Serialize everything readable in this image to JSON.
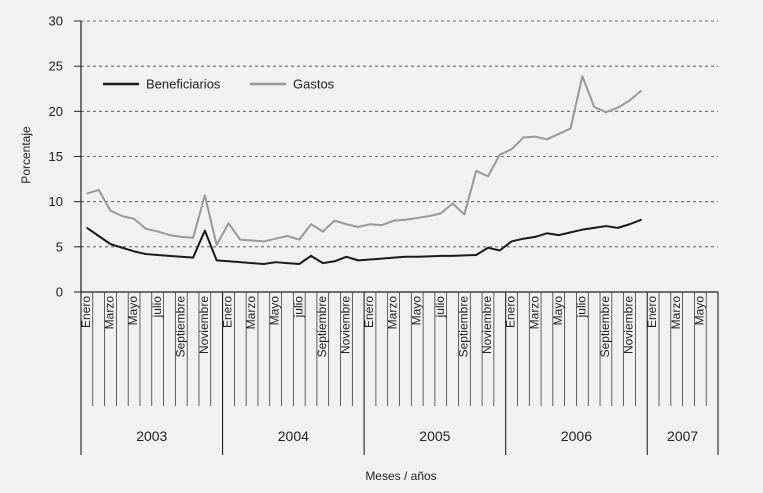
{
  "chart_data": {
    "type": "line",
    "title": "",
    "xlabel": "Meses / años",
    "ylabel": "Porcentaje",
    "ylim": [
      0,
      30
    ],
    "yticks": [
      0,
      5,
      10,
      15,
      20,
      25,
      30
    ],
    "grid": "horizontal-dashed",
    "legend_position": "top-left",
    "years": [
      {
        "label": "2003",
        "start": 0,
        "end": 12
      },
      {
        "label": "2004",
        "start": 12,
        "end": 24
      },
      {
        "label": "2005",
        "start": 24,
        "end": 36
      },
      {
        "label": "2006",
        "start": 36,
        "end": 48
      },
      {
        "label": "2007",
        "start": 48,
        "end": 54
      }
    ],
    "month_tick_labels": [
      {
        "index": 0,
        "label": "Enero"
      },
      {
        "index": 2,
        "label": "Marzo"
      },
      {
        "index": 4,
        "label": "Mayo"
      },
      {
        "index": 6,
        "label": "julio"
      },
      {
        "index": 8,
        "label": "Septiembre"
      },
      {
        "index": 10,
        "label": "Noviembre"
      },
      {
        "index": 12,
        "label": "Enero"
      },
      {
        "index": 14,
        "label": "Marzo"
      },
      {
        "index": 16,
        "label": "Mayo"
      },
      {
        "index": 18,
        "label": "julio"
      },
      {
        "index": 20,
        "label": "Septiembre"
      },
      {
        "index": 22,
        "label": "Noviembre"
      },
      {
        "index": 24,
        "label": "Enero"
      },
      {
        "index": 26,
        "label": "Marzo"
      },
      {
        "index": 28,
        "label": "Mayo"
      },
      {
        "index": 30,
        "label": "julio"
      },
      {
        "index": 32,
        "label": "Septiembre"
      },
      {
        "index": 34,
        "label": "Noviembre"
      },
      {
        "index": 36,
        "label": "Enero"
      },
      {
        "index": 38,
        "label": "Marzo"
      },
      {
        "index": 40,
        "label": "Mayo"
      },
      {
        "index": 42,
        "label": "julio"
      },
      {
        "index": 44,
        "label": "Septiembre"
      },
      {
        "index": 46,
        "label": "Noviembre"
      },
      {
        "index": 48,
        "label": "Enero"
      },
      {
        "index": 50,
        "label": "Marzo"
      },
      {
        "index": 52,
        "label": "Mayo"
      }
    ],
    "series": [
      {
        "name": "Beneficiarios",
        "color": "#1a1a1a",
        "values": [
          7.1,
          6.2,
          5.3,
          4.9,
          4.5,
          4.2,
          4.1,
          4.0,
          3.9,
          3.8,
          6.8,
          3.5,
          3.4,
          3.3,
          3.2,
          3.1,
          3.3,
          3.2,
          3.1,
          4.0,
          3.2,
          3.4,
          3.9,
          3.5,
          3.6,
          3.7,
          3.8,
          3.9,
          3.9,
          3.95,
          4.0,
          4.0,
          4.05,
          4.1,
          4.9,
          4.6,
          5.6,
          5.9,
          6.1,
          6.5,
          6.3,
          6.6,
          6.9,
          7.1,
          7.3,
          7.1,
          7.5,
          8.0
        ]
      },
      {
        "name": "Gastos",
        "color": "#999999",
        "values": [
          10.9,
          11.3,
          9.0,
          8.4,
          8.1,
          7.0,
          6.7,
          6.3,
          6.1,
          6.0,
          10.7,
          5.2,
          7.6,
          5.8,
          5.7,
          5.6,
          5.9,
          6.2,
          5.8,
          7.5,
          6.7,
          7.9,
          7.5,
          7.2,
          7.5,
          7.4,
          7.9,
          8.0,
          8.2,
          8.4,
          8.7,
          9.8,
          8.6,
          13.4,
          12.8,
          15.2,
          15.8,
          17.1,
          17.2,
          16.9,
          17.5,
          18.1,
          23.9,
          20.5,
          19.9,
          20.4,
          21.2,
          22.3
        ]
      }
    ],
    "x_index": [
      0,
      1,
      2,
      3,
      4,
      5,
      6,
      7,
      8,
      9,
      10,
      11,
      12,
      13,
      14,
      15,
      16,
      17,
      18,
      19,
      20,
      21,
      22,
      23,
      24,
      25,
      26,
      27,
      28,
      29,
      30,
      31,
      32,
      33,
      34,
      35,
      36,
      37,
      38,
      39,
      40,
      41,
      42,
      43,
      44,
      45,
      46,
      47
    ]
  }
}
